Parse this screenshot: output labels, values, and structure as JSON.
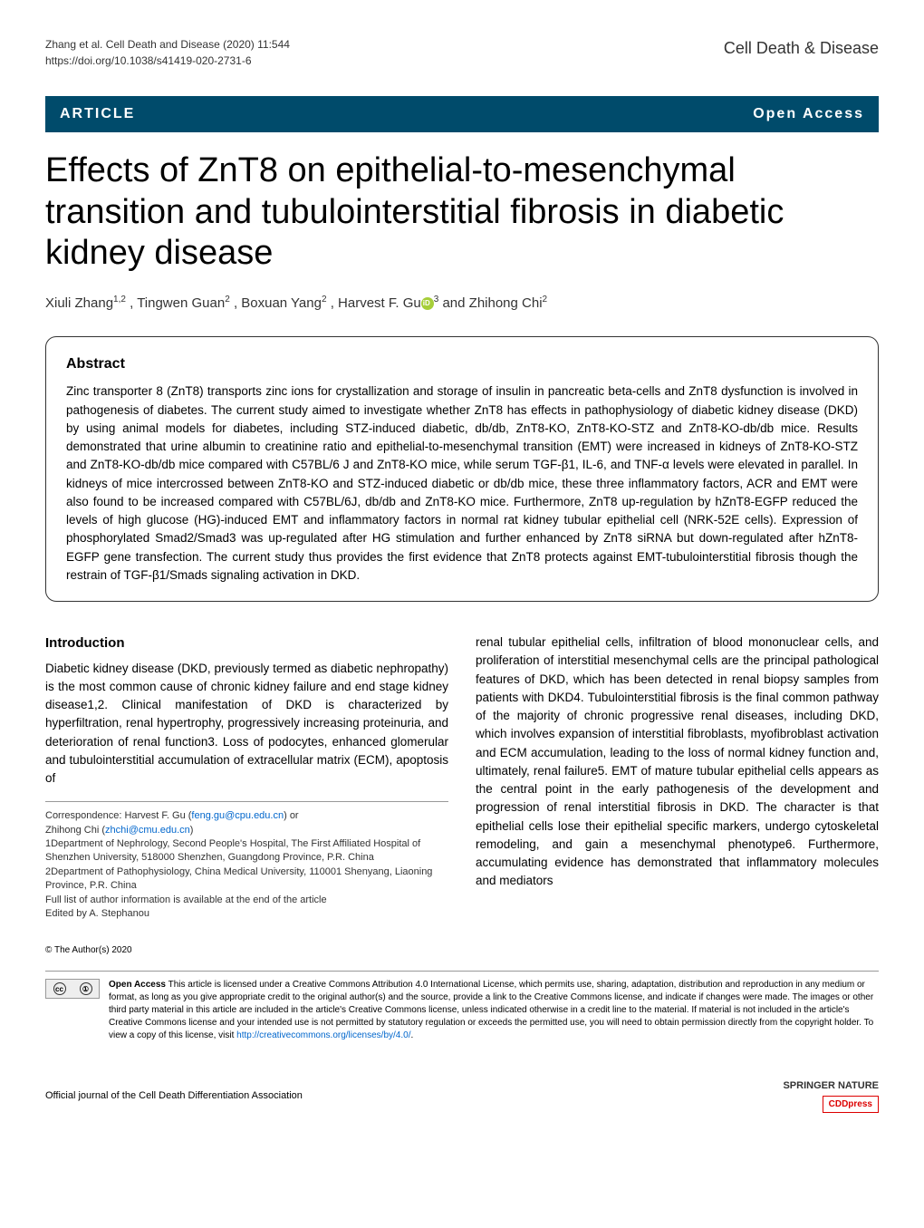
{
  "header": {
    "citation": "Zhang et al. Cell Death and Disease          (2020) 11:544",
    "doi": "https://doi.org/10.1038/s41419-020-2731-6",
    "journal": "Cell Death & Disease"
  },
  "badges": {
    "article": "ARTICLE",
    "open_access": "Open Access"
  },
  "title": "Effects of ZnT8 on epithelial-to-mesenchymal transition and tubulointerstitial fibrosis in diabetic kidney disease",
  "authors": {
    "a1_name": "Xiuli Zhang",
    "a1_sup": "1,2",
    "a2_name": ", Tingwen Guan",
    "a2_sup": "2",
    "a3_name": ", Boxuan Yang",
    "a3_sup": "2",
    "a4_name": ", Harvest F. Gu",
    "a4_sup": "3",
    "a5_name": " and Zhihong Chi",
    "a5_sup": "2"
  },
  "abstract": {
    "heading": "Abstract",
    "text": "Zinc transporter 8 (ZnT8) transports zinc ions for crystallization and storage of insulin in pancreatic beta-cells and ZnT8 dysfunction is involved in pathogenesis of diabetes. The current study aimed to investigate whether ZnT8 has effects in pathophysiology of diabetic kidney disease (DKD) by using animal models for diabetes, including STZ-induced diabetic, db/db, ZnT8-KO, ZnT8-KO-STZ and ZnT8-KO-db/db mice. Results demonstrated that urine albumin to creatinine ratio and epithelial-to-mesenchymal transition (EMT) were increased in kidneys of ZnT8-KO-STZ and ZnT8-KO-db/db mice compared with C57BL/6 J and ZnT8-KO mice, while serum TGF-β1, IL-6, and TNF-α levels were elevated in parallel. In kidneys of mice intercrossed between ZnT8-KO and STZ-induced diabetic or db/db mice, these three inflammatory factors, ACR and EMT were also found to be increased compared with C57BL/6J, db/db and ZnT8-KO mice. Furthermore, ZnT8 up-regulation by hZnT8-EGFP reduced the levels of high glucose (HG)-induced EMT and inflammatory factors in normal rat kidney tubular epithelial cell (NRK-52E cells). Expression of phosphorylated Smad2/Smad3 was up-regulated after HG stimulation and further enhanced by ZnT8 siRNA but down-regulated after hZnT8-EGFP gene transfection. The current study thus provides the first evidence that ZnT8 protects against EMT-tubulointerstitial fibrosis though the restrain of TGF-β1/Smads signaling activation in DKD."
  },
  "introduction": {
    "heading": "Introduction",
    "col1": "Diabetic kidney disease (DKD, previously termed as diabetic nephropathy) is the most common cause of chronic kidney failure and end stage kidney disease1,2. Clinical manifestation of DKD is characterized by hyperfiltration, renal hypertrophy, progressively increasing proteinuria, and deterioration of renal function3. Loss of podocytes, enhanced glomerular and tubulointerstitial accumulation of extracellular matrix (ECM), apoptosis of",
    "col2": "renal tubular epithelial cells, infiltration of blood mononuclear cells, and proliferation of interstitial mesenchymal cells are the principal pathological features of DKD, which has been detected in renal biopsy samples from patients with DKD4. Tubulointerstitial fibrosis is the final common pathway of the majority of chronic progressive renal diseases, including DKD, which involves expansion of interstitial fibroblasts, myofibroblast activation and ECM accumulation, leading to the loss of normal kidney function and, ultimately, renal failure5. EMT of mature tubular epithelial cells appears as the central point in the early pathogenesis of the development and progression of renal interstitial fibrosis in DKD. The character is that epithelial cells lose their epithelial specific markers, undergo cytoskeletal remodeling, and gain a mesenchymal phenotype6. Furthermore, accumulating evidence has demonstrated that inflammatory molecules and mediators"
  },
  "footnotes": {
    "correspondence_label": "Correspondence: Harvest F. Gu (",
    "email1": "feng.gu@cpu.edu.cn",
    "or_text": ") or",
    "name2": "Zhihong Chi (",
    "email2": "zhchi@cmu.edu.cn",
    "close2": ")",
    "aff1": "1Department of Nephrology, Second People's Hospital, The First Affiliated Hospital of Shenzhen University, 518000 Shenzhen, Guangdong Province, P.R. China",
    "aff2": "2Department of Pathophysiology, China Medical University, 110001 Shenyang, Liaoning Province, P.R. China",
    "full_list": "Full list of author information is available at the end of the article",
    "edited_by": "Edited by A. Stephanou"
  },
  "license": {
    "copyright": "© The Author(s) 2020",
    "bold_label": "Open Access",
    "text": " This article is licensed under a Creative Commons Attribution 4.0 International License, which permits use, sharing, adaptation, distribution and reproduction in any medium or format, as long as you give appropriate credit to the original author(s) and the source, provide a link to the Creative Commons license, and indicate if changes were made. The images or other third party material in this article are included in the article's Creative Commons license, unless indicated otherwise in a credit line to the material. If material is not included in the article's Creative Commons license and your intended use is not permitted by statutory regulation or exceeds the permitted use, you will need to obtain permission directly from the copyright holder. To view a copy of this license, visit ",
    "link": "http://creativecommons.org/licenses/by/4.0/",
    "period": "."
  },
  "footer": {
    "official": "Official journal of the Cell Death Differentiation Association",
    "springer": "SPRINGER NATURE",
    "cdd": "CDDpress"
  }
}
